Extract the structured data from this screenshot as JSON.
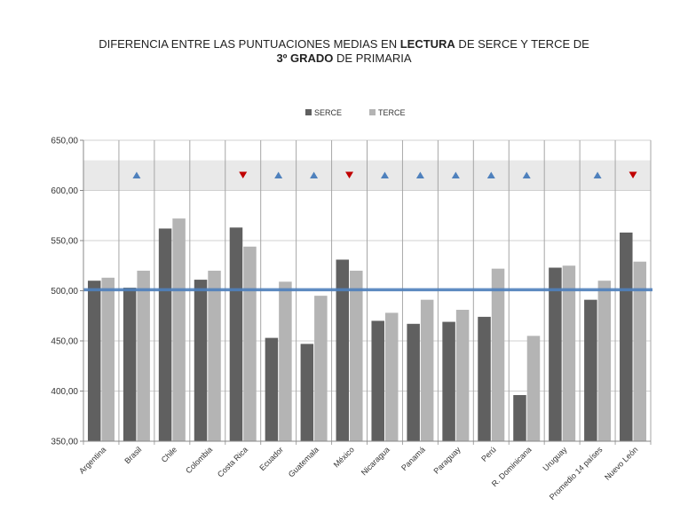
{
  "chart_data": {
    "type": "bar",
    "title": {
      "line1_pre": "DIFERENCIA ENTRE LAS PUNTUACIONES MEDIAS EN ",
      "line1_bold": "LECTURA",
      "line1_post": " DE SERCE Y TERCE DE",
      "line2_bold": "3º GRADO",
      "line2_post": " DE PRIMARIA"
    },
    "categories": [
      "Argentina",
      "Brasil",
      "Chile",
      "Colombia",
      "Costa Rica",
      "Ecuador",
      "Guatemala",
      "México",
      "Nicaragua",
      "Panamá",
      "Paraguay",
      "Perú",
      "R. Dominicana",
      "Uruguay",
      "Promedio 14 países",
      "Nuevo León"
    ],
    "series": [
      {
        "name": "SERCE",
        "color": "#606060",
        "values": [
          510,
          503,
          562,
          511,
          563,
          453,
          447,
          531,
          470,
          467,
          469,
          474,
          396,
          523,
          491,
          558
        ]
      },
      {
        "name": "TERCE",
        "color": "#b4b4b4",
        "values": [
          513,
          520,
          572,
          520,
          544,
          509,
          495,
          520,
          478,
          491,
          481,
          522,
          455,
          525,
          510,
          529
        ]
      }
    ],
    "significance": [
      "none",
      "up",
      "none",
      "none",
      "down",
      "up",
      "up",
      "down",
      "up",
      "up",
      "up",
      "up",
      "up",
      "none",
      "up",
      "down"
    ],
    "significance_colors": {
      "up": "#4f81bd",
      "down": "#c00000"
    },
    "reference_line": {
      "value": 501,
      "color": "#4f81bd"
    },
    "ylim": [
      350,
      650
    ],
    "yticks": [
      "350,00",
      "400,00",
      "450,00",
      "500,00",
      "550,00",
      "600,00",
      "650,00"
    ],
    "ytick_values": [
      350,
      400,
      450,
      500,
      550,
      600,
      650
    ],
    "band_range": [
      600,
      630
    ],
    "legend_position": "top-center",
    "xlabel": "",
    "ylabel": ""
  }
}
